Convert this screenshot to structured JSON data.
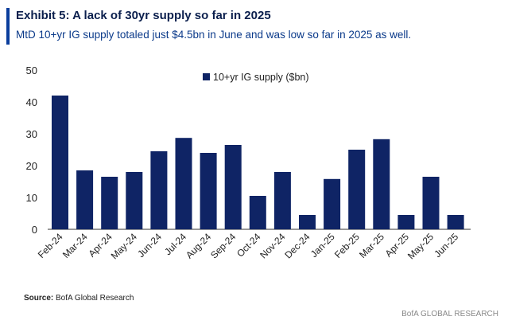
{
  "header": {
    "title": "Exhibit 5: A lack of 30yr supply so far in 2025",
    "subtitle": "MtD 10+yr IG supply totaled just $4.5bn in June and was low so far in 2025 as well."
  },
  "footer": {
    "source_label": "Source:",
    "source_text": "BofA Global Research",
    "brand": "BofA GLOBAL RESEARCH"
  },
  "colors": {
    "bar": "#0f2465",
    "accent": "#0a3d9c"
  },
  "chart_data": {
    "type": "bar",
    "title": "Exhibit 5: A lack of 30yr supply so far in 2025",
    "categories": [
      "Feb-24",
      "Mar-24",
      "Apr-24",
      "May-24",
      "Jun-24",
      "Jul-24",
      "Aug-24",
      "Sep-24",
      "Oct-24",
      "Nov-24",
      "Dec-24",
      "Jan-25",
      "Feb-25",
      "Mar-25",
      "Apr-25",
      "May-25",
      "Jun-25"
    ],
    "series": [
      {
        "name": "10+yr IG supply ($bn)",
        "values": [
          42,
          18.5,
          16.5,
          18,
          24.5,
          28.7,
          24,
          26.5,
          10.5,
          18,
          4.5,
          15.8,
          25,
          28.3,
          4.5,
          16.5,
          4.5
        ]
      }
    ],
    "ylim": [
      0,
      50
    ],
    "yticks": [
      0,
      10,
      20,
      30,
      40,
      50
    ],
    "xlabel": "",
    "ylabel": "",
    "grid": false,
    "legend": "top-center"
  }
}
